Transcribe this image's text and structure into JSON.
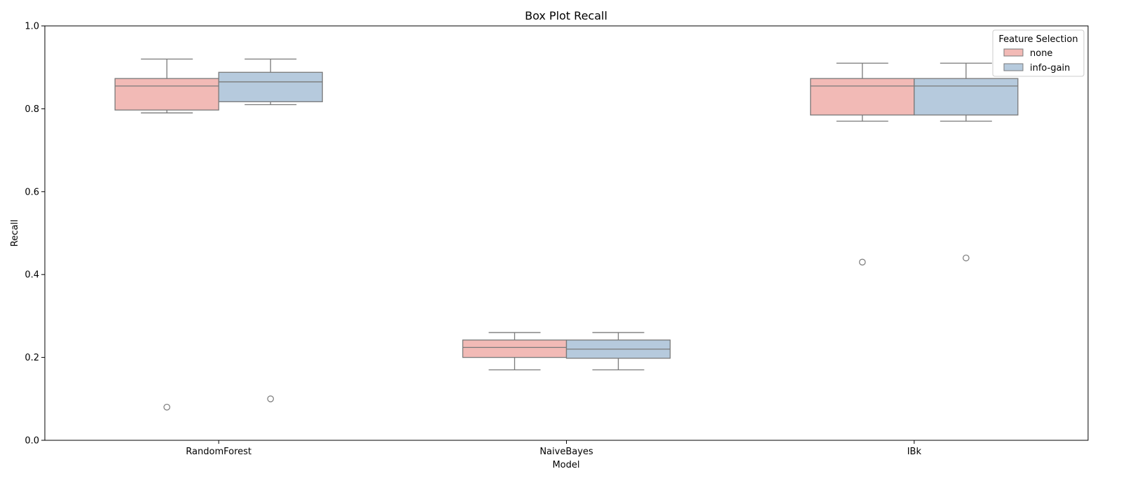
{
  "chart_data": {
    "type": "box",
    "title": "Box Plot Recall",
    "xlabel": "Model",
    "ylabel": "Recall",
    "ylim": [
      0.0,
      1.0
    ],
    "yticks": [
      "0.0",
      "0.2",
      "0.4",
      "0.6",
      "0.8",
      "1.0"
    ],
    "categories": [
      "RandomForest",
      "NaiveBayes",
      "IBk"
    ],
    "legend": {
      "title": "Feature Selection",
      "position": "top-right"
    },
    "series": [
      {
        "name": "none",
        "color": "#f2bab6",
        "boxes": [
          {
            "whisker_low": 0.79,
            "q1": 0.797,
            "median": 0.855,
            "q3": 0.873,
            "whisker_high": 0.92,
            "outliers": [
              0.08
            ]
          },
          {
            "whisker_low": 0.17,
            "q1": 0.2,
            "median": 0.224,
            "q3": 0.242,
            "whisker_high": 0.26,
            "outliers": []
          },
          {
            "whisker_low": 0.77,
            "q1": 0.785,
            "median": 0.855,
            "q3": 0.873,
            "whisker_high": 0.91,
            "outliers": [
              0.43
            ]
          }
        ]
      },
      {
        "name": "info-gain",
        "color": "#b6cadd",
        "boxes": [
          {
            "whisker_low": 0.81,
            "q1": 0.817,
            "median": 0.865,
            "q3": 0.888,
            "whisker_high": 0.92,
            "outliers": [
              0.1
            ]
          },
          {
            "whisker_low": 0.17,
            "q1": 0.198,
            "median": 0.22,
            "q3": 0.242,
            "whisker_high": 0.26,
            "outliers": []
          },
          {
            "whisker_low": 0.77,
            "q1": 0.785,
            "median": 0.855,
            "q3": 0.873,
            "whisker_high": 0.91,
            "outliers": [
              0.44
            ]
          }
        ]
      }
    ],
    "grid": false
  }
}
